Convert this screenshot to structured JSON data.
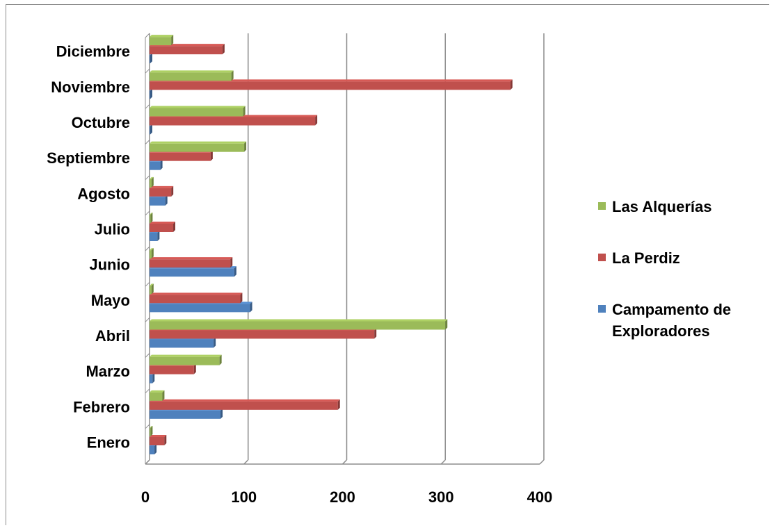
{
  "chart_data": {
    "type": "bar",
    "orientation": "horizontal",
    "categories": [
      "Enero",
      "Febrero",
      "Marzo",
      "Abril",
      "Mayo",
      "Junio",
      "Julio",
      "Agosto",
      "Septiembre",
      "Octubre",
      "Noviembre",
      "Diciembre"
    ],
    "series": [
      {
        "name": "Campamento de Exploradores",
        "color": "#4f81bd",
        "values": [
          5,
          72,
          3,
          65,
          102,
          86,
          8,
          16,
          11,
          0,
          0,
          0
        ]
      },
      {
        "name": "La Perdiz",
        "color": "#c0504d",
        "values": [
          15,
          191,
          45,
          228,
          92,
          82,
          24,
          22,
          62,
          168,
          366,
          74
        ]
      },
      {
        "name": "Las Alquerías",
        "color": "#9bbb59",
        "values": [
          1,
          13,
          71,
          300,
          2,
          2,
          1,
          2,
          96,
          95,
          83,
          22
        ]
      }
    ],
    "legend_order": [
      "Las Alquerías",
      "La Perdiz",
      "Campamento de Exploradores"
    ],
    "legend_lines": {
      "Campamento de Exploradores": [
        "Campamento de",
        "Exploradores"
      ]
    },
    "xlim": [
      0,
      400
    ],
    "xticks": [
      0,
      100,
      200,
      300,
      400
    ],
    "grid": true,
    "legend_position": "right",
    "title": "",
    "xlabel": "",
    "ylabel": ""
  }
}
